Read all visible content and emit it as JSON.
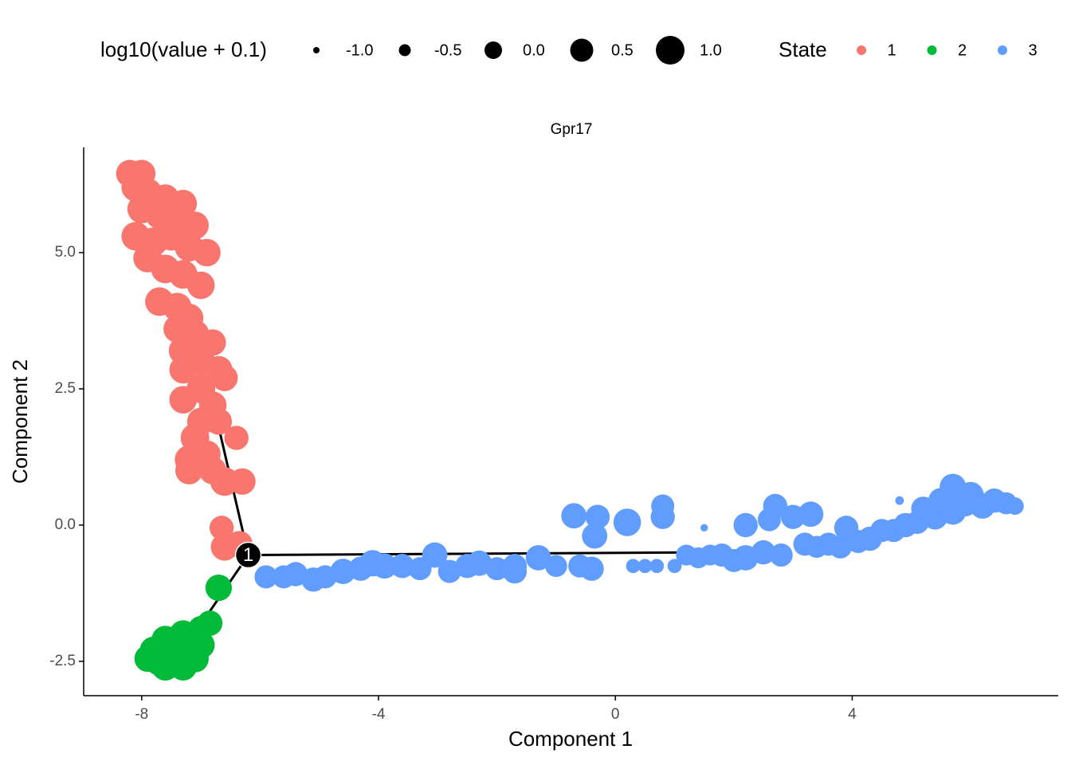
{
  "chart_data": {
    "type": "scatter",
    "title": "Gpr17",
    "x_label": "Component 1",
    "y_label": "Component 2",
    "xlim": [
      -8.98,
      7.48
    ],
    "ylim": [
      -3.13,
      6.93
    ],
    "xticks": [
      -8,
      -4,
      0,
      4
    ],
    "yticks": [
      -2.5,
      {
        "value": 0,
        "label": "0.0"
      },
      2.5,
      {
        "value": 5,
        "label": "5.0"
      }
    ],
    "size_legend": {
      "title": "log10(value + 0.1)",
      "breaks": [
        {
          "value": -1,
          "label": "-1.0"
        },
        {
          "value": -0.5,
          "label": "-0.5"
        },
        {
          "value": 0,
          "label": "0.0"
        },
        {
          "value": 0.5,
          "label": "0.5"
        },
        {
          "value": 1,
          "label": "1.0"
        }
      ]
    },
    "color_legend_title": "State",
    "series": [
      {
        "name": "1",
        "color": "#F8766D",
        "x": [
          -8.2,
          -8.0,
          -8.1,
          -7.9,
          -7.6,
          -7.3,
          -8.0,
          -7.7,
          -7.4,
          -7.1,
          -8.1,
          -7.8,
          -7.5,
          -7.2,
          -6.9,
          -7.9,
          -7.6,
          -7.3,
          -7.0,
          -7.7,
          -7.4,
          -7.2,
          -7.4,
          -7.1,
          -6.8,
          -7.3,
          -7.0,
          -7.3,
          -6.7,
          -6.6,
          -7.0,
          -7.3,
          -6.8,
          -7.0,
          -6.7,
          -7.1,
          -6.4,
          -7.2,
          -6.9,
          -7.2,
          -6.8,
          -6.6,
          -6.3,
          -6.65,
          -6.6,
          -6.35
        ],
        "values": [
          6.45,
          6.45,
          6.2,
          6.1,
          6.0,
          5.9,
          5.8,
          5.7,
          5.6,
          5.5,
          5.3,
          5.2,
          5.3,
          5.1,
          5.0,
          4.9,
          4.7,
          4.6,
          4.4,
          4.1,
          4.0,
          3.8,
          3.6,
          3.5,
          3.35,
          3.2,
          3.0,
          2.85,
          2.85,
          2.7,
          2.5,
          2.3,
          2.2,
          1.9,
          1.9,
          1.6,
          1.6,
          1.2,
          1.3,
          1.0,
          1.0,
          0.8,
          0.8,
          -0.05,
          -0.4,
          -0.35
        ],
        "sizes": [
          0.9,
          0.9,
          1.0,
          1.0,
          0.9,
          0.9,
          1.0,
          1.0,
          1.0,
          0.9,
          1.0,
          1.0,
          1.0,
          1.0,
          0.9,
          1.0,
          1.0,
          1.0,
          0.9,
          1.0,
          1.0,
          1.0,
          0.9,
          1.0,
          0.8,
          1.0,
          1.0,
          0.9,
          0.9,
          0.8,
          1.0,
          0.9,
          0.9,
          0.9,
          0.8,
          1.0,
          0.6,
          1.0,
          0.9,
          0.9,
          0.9,
          1.0,
          0.8,
          0.6,
          0.9,
          0.8
        ]
      },
      {
        "name": "2",
        "color": "#00BA38",
        "x": [
          -6.7,
          -6.85,
          -7.0,
          -7.6,
          -7.3,
          -7.8,
          -7.5,
          -7.2,
          -7.0,
          -7.9,
          -7.7,
          -7.4,
          -7.1,
          -7.6,
          -7.3,
          -7.5
        ],
        "values": [
          -1.15,
          -1.8,
          -1.9,
          -2.1,
          -2.0,
          -2.3,
          -2.3,
          -2.3,
          -2.2,
          -2.45,
          -2.5,
          -2.5,
          -2.45,
          -2.6,
          -2.6,
          -2.4
        ],
        "sizes": [
          0.8,
          0.7,
          0.7,
          0.9,
          0.9,
          0.9,
          1.0,
          1.0,
          0.9,
          0.8,
          1.0,
          1.0,
          0.9,
          0.9,
          0.9,
          1.0
        ]
      },
      {
        "name": "3",
        "color": "#619CFF",
        "x": [
          -5.9,
          -5.6,
          -5.4,
          -5.1,
          -4.9,
          -4.6,
          -4.3,
          -4.1,
          -3.9,
          -3.6,
          -3.3,
          -3.05,
          -2.8,
          -2.5,
          -2.3,
          -2.0,
          -1.7,
          -1.7,
          -1.3,
          -1.0,
          -0.7,
          -0.6,
          -0.4,
          -0.35,
          -0.3,
          0.2,
          0.3,
          0.5,
          0.7,
          0.7,
          0.8,
          0.8,
          1.0,
          1.2,
          1.4,
          1.5,
          1.6,
          1.8,
          2.0,
          2.2,
          2.2,
          2.5,
          2.6,
          2.7,
          2.8,
          3.0,
          3.2,
          3.3,
          3.4,
          3.6,
          3.8,
          3.9,
          4.1,
          4.3,
          4.5,
          4.7,
          4.9,
          5.1,
          5.2,
          5.4,
          5.5,
          5.7,
          5.7,
          5.9,
          6.0,
          6.2,
          6.4,
          6.6,
          6.75,
          4.8,
          5.6
        ],
        "values": [
          -0.95,
          -0.95,
          -0.9,
          -1.0,
          -0.95,
          -0.85,
          -0.8,
          -0.7,
          -0.75,
          -0.75,
          -0.8,
          -0.55,
          -0.85,
          -0.75,
          -0.7,
          -0.8,
          -0.75,
          -0.85,
          -0.6,
          -0.75,
          0.17,
          -0.75,
          -0.8,
          -0.2,
          0.15,
          0.05,
          -0.75,
          -0.75,
          -0.75,
          0.35,
          0.15,
          0.35,
          -0.75,
          -0.55,
          -0.6,
          -0.05,
          -0.55,
          -0.55,
          -0.65,
          0.0,
          -0.6,
          -0.5,
          0.1,
          0.35,
          -0.55,
          0.15,
          -0.35,
          0.2,
          -0.4,
          -0.35,
          -0.4,
          -0.05,
          -0.3,
          -0.25,
          -0.1,
          -0.1,
          0.0,
          0.05,
          0.3,
          0.15,
          0.45,
          0.25,
          0.7,
          0.4,
          0.55,
          0.35,
          0.45,
          0.4,
          0.35,
          0.45,
          0.7
        ],
        "sizes": [
          0.5,
          0.5,
          0.6,
          0.6,
          0.5,
          0.7,
          0.6,
          0.8,
          0.7,
          0.6,
          0.5,
          0.7,
          0.5,
          0.6,
          0.7,
          0.5,
          0.6,
          0.6,
          0.7,
          0.4,
          0.7,
          0.5,
          0.6,
          0.7,
          0.6,
          0.9,
          -0.3,
          -0.3,
          -0.3,
          -0.8,
          0.6,
          0.5,
          -0.3,
          0.3,
          0.3,
          -0.9,
          0.3,
          0.5,
          0.5,
          0.6,
          0.7,
          0.6,
          0.5,
          0.6,
          0.5,
          0.6,
          0.5,
          0.7,
          0.4,
          0.5,
          0.5,
          0.6,
          0.5,
          0.6,
          0.5,
          0.5,
          0.6,
          0.5,
          0.6,
          0.7,
          0.7,
          0.8,
          0.8,
          0.8,
          0.8,
          0.7,
          0.6,
          0.4,
          0.0,
          -0.8,
          -0.7
        ]
      }
    ],
    "trajectory": [
      {
        "x": [
          -6.7,
          -6.2
        ],
        "values": [
          1.8,
          -0.55
        ]
      },
      {
        "x": [
          -6.2,
          1.45
        ],
        "values": [
          -0.55,
          -0.5
        ]
      },
      {
        "x": [
          -6.2,
          -7.05
        ],
        "values": [
          -0.55,
          -1.9
        ]
      }
    ],
    "branch_points": [
      {
        "x": -6.2,
        "y": -0.55,
        "label": "1"
      }
    ]
  }
}
